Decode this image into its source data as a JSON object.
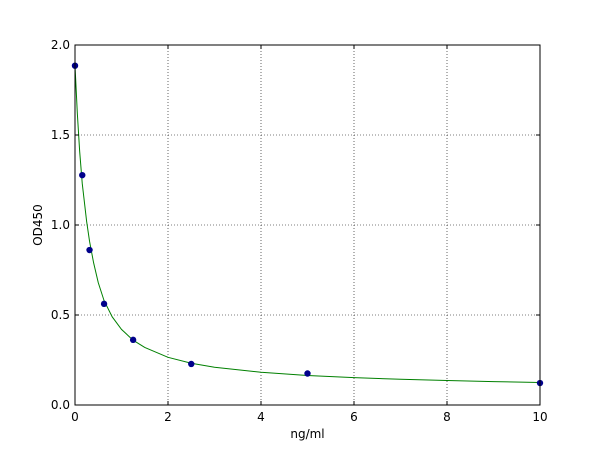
{
  "chart_data": {
    "type": "scatter",
    "title": "",
    "xlabel": "ng/ml",
    "ylabel": "OD450",
    "xlim": [
      0,
      10
    ],
    "ylim": [
      0,
      2.0
    ],
    "x_ticks": [
      0,
      2,
      4,
      6,
      8,
      10
    ],
    "x_tick_labels": [
      "0",
      "2",
      "4",
      "6",
      "8",
      "10"
    ],
    "y_ticks": [
      0,
      0.5,
      1.0,
      1.5,
      2.0
    ],
    "y_tick_labels": [
      "0.0",
      "0.5",
      "1.0",
      "1.5",
      "2.0"
    ],
    "grid": true,
    "series": [
      {
        "kind": "points",
        "color": "#00008b",
        "x": [
          0,
          0.156,
          0.3125,
          0.625,
          1.25,
          2.5,
          5,
          10
        ],
        "y": [
          1.885,
          1.277,
          0.861,
          0.562,
          0.362,
          0.228,
          0.175,
          0.122
        ]
      },
      {
        "kind": "fitted-curve",
        "color": "#008000",
        "x": [
          0,
          0.05,
          0.1,
          0.156,
          0.25,
          0.3125,
          0.4,
          0.5,
          0.625,
          0.8,
          1.0,
          1.25,
          1.5,
          2.0,
          2.5,
          3.0,
          4.0,
          5.0,
          6.0,
          7.0,
          8.0,
          9.0,
          10.0
        ],
        "y": [
          1.885,
          1.62,
          1.41,
          1.23,
          1.02,
          0.91,
          0.79,
          0.68,
          0.58,
          0.49,
          0.42,
          0.36,
          0.32,
          0.265,
          0.232,
          0.21,
          0.182,
          0.164,
          0.152,
          0.143,
          0.136,
          0.13,
          0.125
        ]
      }
    ]
  }
}
